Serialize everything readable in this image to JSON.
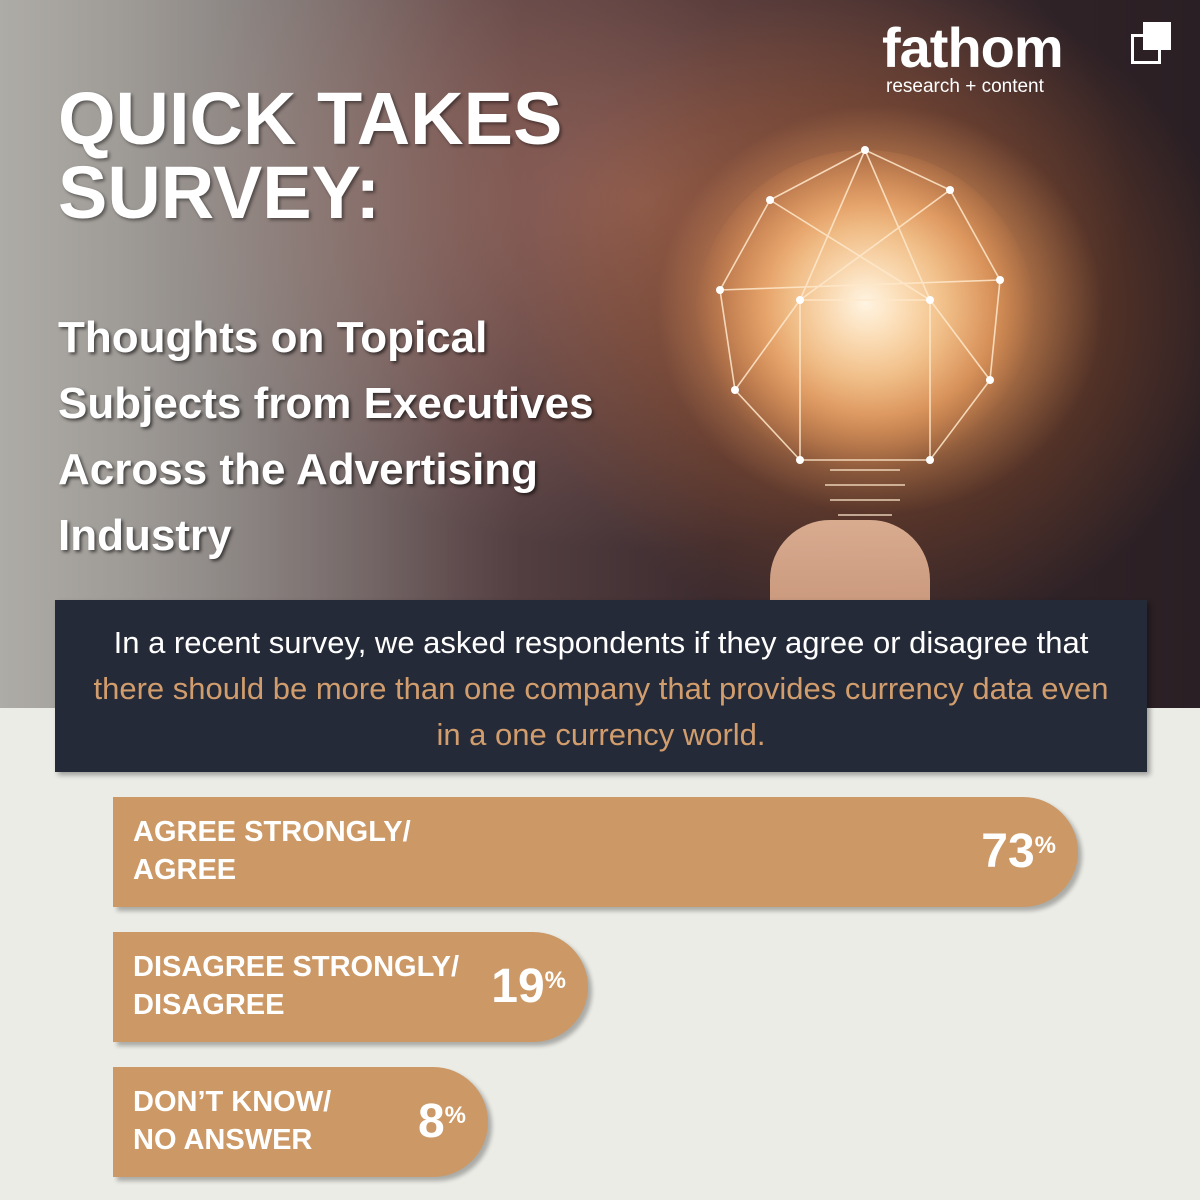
{
  "brand": {
    "name": "fathom",
    "tagline": "research + content"
  },
  "header": {
    "title": "QUICK TAKES SURVEY:",
    "subtitle": "Thoughts on Topical Subjects from Executives Across the Advertising Industry"
  },
  "question": {
    "intro": "In a recent survey, we asked respondents if they agree or disagree that ",
    "highlight": "there should be more than one company that provides currency data even in a one currency world."
  },
  "colors": {
    "bar": "#cc9966",
    "question_bg": "#252a38",
    "highlight_text": "#d19d6d",
    "page_bg": "#ecece7"
  },
  "chart_data": {
    "type": "bar",
    "orientation": "horizontal",
    "categories": [
      "AGREE STRONGLY/ AGREE",
      "DISAGREE STRONGLY/ DISAGREE",
      "DON’T KNOW/ NO ANSWER"
    ],
    "label_lines": [
      [
        "AGREE STRONGLY/",
        "AGREE"
      ],
      [
        "DISAGREE STRONGLY/",
        "DISAGREE"
      ],
      [
        "DON’T KNOW/",
        "NO ANSWER"
      ]
    ],
    "values": [
      73,
      19,
      8
    ],
    "unit": "%"
  }
}
